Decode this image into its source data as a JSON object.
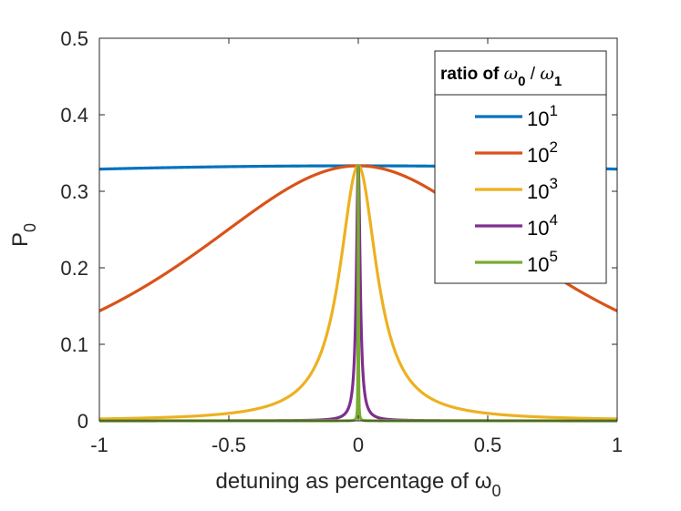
{
  "chart_data": {
    "type": "line",
    "title": "",
    "xlabel": "detuning as percentage of ω",
    "xlabel_subscript": "0",
    "ylabel": "P",
    "ylabel_subscript": "0",
    "xlim": [
      -1,
      1
    ],
    "ylim": [
      0,
      0.5
    ],
    "xticks": [
      -1,
      -0.5,
      0,
      0.5,
      1
    ],
    "xtick_labels": [
      "-1",
      "-0.5",
      "0",
      "0.5",
      "1"
    ],
    "yticks": [
      0,
      0.1,
      0.2,
      0.3,
      0.4,
      0.5
    ],
    "ytick_labels": [
      "0",
      "0.1",
      "0.2",
      "0.3",
      "0.4",
      "0.5"
    ],
    "grid": false,
    "legend": {
      "placement": "top-right",
      "title_prefix": "ratio of ",
      "title_w0": "ω",
      "title_w0_sub": "0",
      "title_sep": " / ",
      "title_w1": "ω",
      "title_w1_sub": "1"
    },
    "model": "Lorentzian peak: P = peak / (1 + (x / halfwidth)^2)",
    "series": [
      {
        "name": "10^1",
        "base": "10",
        "exp": "1",
        "color": "#0072BD",
        "peak": 0.3333,
        "halfwidth": 8.7,
        "sample_points": [
          [
            -1,
            0.329
          ],
          [
            -0.5,
            0.332
          ],
          [
            0,
            0.333
          ],
          [
            0.5,
            0.332
          ],
          [
            1,
            0.329
          ]
        ]
      },
      {
        "name": "10^2",
        "base": "10",
        "exp": "2",
        "color": "#D95319",
        "peak": 0.3333,
        "halfwidth": 0.87,
        "sample_points": [
          [
            -1,
            0.143
          ],
          [
            -0.5,
            0.25
          ],
          [
            0,
            0.333
          ],
          [
            0.5,
            0.25
          ],
          [
            1,
            0.143
          ]
        ]
      },
      {
        "name": "10^3",
        "base": "10",
        "exp": "3",
        "color": "#EDB120",
        "peak": 0.3333,
        "halfwidth": 0.087,
        "sample_points": [
          [
            -1,
            0.003
          ],
          [
            -0.5,
            0.01
          ],
          [
            -0.1,
            0.143
          ],
          [
            0,
            0.333
          ],
          [
            0.1,
            0.143
          ],
          [
            0.5,
            0.01
          ],
          [
            1,
            0.003
          ]
        ]
      },
      {
        "name": "10^4",
        "base": "10",
        "exp": "4",
        "color": "#7E2F8E",
        "peak": 0.3333,
        "halfwidth": 0.0087,
        "sample_points": [
          [
            -1,
            0.0
          ],
          [
            -0.05,
            0.01
          ],
          [
            0,
            0.333
          ],
          [
            0.05,
            0.01
          ],
          [
            1,
            0.0
          ]
        ]
      },
      {
        "name": "10^5",
        "base": "10",
        "exp": "5",
        "color": "#77AC30",
        "peak": 0.3333,
        "halfwidth": 0.00087,
        "sample_points": [
          [
            -1,
            0.0
          ],
          [
            0,
            0.333
          ],
          [
            1,
            0.0
          ]
        ]
      }
    ]
  }
}
